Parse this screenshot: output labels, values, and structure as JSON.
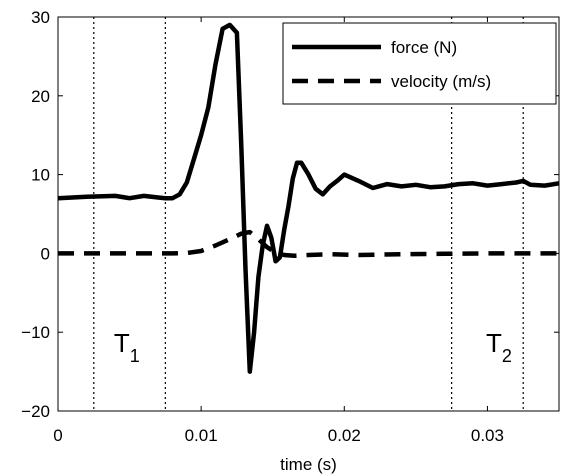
{
  "chart_data": {
    "type": "line",
    "title": "",
    "xlabel": "time (s)",
    "ylabel": "",
    "xlim": [
      0,
      0.035
    ],
    "ylim": [
      -20,
      30
    ],
    "x_ticks": [
      0,
      0.01,
      0.02,
      0.03
    ],
    "x_tick_labels": [
      "0",
      "0.01",
      "0.02",
      "0.03"
    ],
    "y_ticks": [
      -20,
      -10,
      0,
      10,
      20,
      30
    ],
    "y_tick_labels": [
      "−20",
      "−10",
      "0",
      "10",
      "20",
      "30"
    ],
    "grid": false,
    "legend_position": "top-right",
    "series": [
      {
        "name": "force (N)",
        "style": "solid",
        "color": "#000000",
        "x": [
          0,
          0.002,
          0.004,
          0.005,
          0.006,
          0.007,
          0.0075,
          0.008,
          0.0085,
          0.009,
          0.0095,
          0.01,
          0.0105,
          0.011,
          0.0115,
          0.012,
          0.0125,
          0.0128,
          0.0131,
          0.0134,
          0.0137,
          0.014,
          0.0143,
          0.0146,
          0.0149,
          0.0152,
          0.0155,
          0.0158,
          0.0161,
          0.0164,
          0.0167,
          0.017,
          0.0175,
          0.018,
          0.0185,
          0.019,
          0.0195,
          0.02,
          0.021,
          0.022,
          0.023,
          0.024,
          0.025,
          0.026,
          0.027,
          0.028,
          0.029,
          0.03,
          0.031,
          0.032,
          0.0325,
          0.033,
          0.034,
          0.035
        ],
        "y": [
          7.0,
          7.2,
          7.3,
          7.0,
          7.3,
          7.1,
          7.0,
          7.0,
          7.5,
          9.0,
          12.0,
          15.0,
          18.5,
          24.0,
          28.5,
          29.0,
          28.0,
          14.0,
          -2.0,
          -15.0,
          -10.0,
          -3.0,
          1.0,
          3.5,
          2.0,
          -1.0,
          -0.5,
          3.0,
          6.0,
          9.5,
          11.5,
          11.5,
          10.0,
          8.2,
          7.5,
          8.5,
          9.2,
          10.0,
          9.2,
          8.3,
          8.8,
          8.5,
          8.7,
          8.4,
          8.5,
          8.8,
          8.9,
          8.6,
          8.8,
          9.0,
          9.2,
          8.7,
          8.6,
          8.9
        ]
      },
      {
        "name": "velocity (m/s)",
        "style": "dashed",
        "color": "#000000",
        "x": [
          0,
          0.002,
          0.004,
          0.006,
          0.008,
          0.009,
          0.01,
          0.011,
          0.012,
          0.0128,
          0.0134,
          0.014,
          0.0146,
          0.0152,
          0.0158,
          0.0165,
          0.0175,
          0.019,
          0.021,
          0.024,
          0.027,
          0.03,
          0.033,
          0.035
        ],
        "y": [
          0,
          0,
          0,
          0,
          0,
          0.05,
          0.3,
          1.0,
          1.8,
          2.5,
          2.7,
          1.8,
          0.8,
          0.1,
          -0.2,
          -0.3,
          -0.2,
          -0.1,
          -0.2,
          -0.1,
          -0.05,
          0,
          0,
          0
        ]
      }
    ],
    "vertical_lines": [
      0.0025,
      0.0075,
      0.0275,
      0.0325
    ],
    "annotations": [
      {
        "text": "T",
        "subscript": "1",
        "x": 0.0039,
        "y": -12.5
      },
      {
        "text": "T",
        "subscript": "2",
        "x": 0.0299,
        "y": -12.5
      }
    ]
  }
}
